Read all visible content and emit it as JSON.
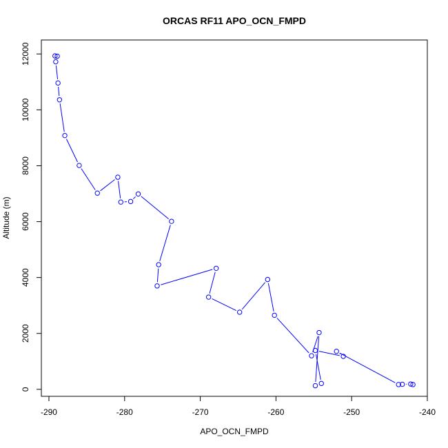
{
  "chart_data": {
    "type": "line",
    "title": "ORCAS RF11 APO_OCN_FMPD",
    "xlabel": "APO_OCN_FMPD",
    "ylabel": "Altitude (m)",
    "xlim": [
      -291,
      -240
    ],
    "ylim": [
      -250,
      12500
    ],
    "x_ticks": [
      -290,
      -280,
      -270,
      -260,
      -250,
      -240
    ],
    "y_ticks": [
      0,
      2000,
      4000,
      6000,
      8000,
      10000,
      12000
    ],
    "x_tick_labels": [
      "-290",
      "-280",
      "-270",
      "-260",
      "-250",
      "-240"
    ],
    "y_tick_labels": [
      "0",
      "2000",
      "4000",
      "6000",
      "8000",
      "10000",
      "12000"
    ],
    "marker": "open-circle",
    "line_style": "solid",
    "grid": false,
    "legend": "none",
    "color": "#0000ff",
    "series": [
      {
        "x": [
          -289.2,
          -288.9,
          -289.1,
          -288.8,
          -288.6,
          -287.9,
          -286.0,
          -283.6,
          -280.9,
          -280.5,
          -279.2,
          -278.2,
          -273.8,
          -275.5,
          -275.7,
          -267.9,
          -268.9,
          -264.8,
          -261.1,
          -260.2,
          -255.3,
          -254.3,
          -254.8,
          -254.0,
          -254.8,
          -251.1,
          -252.0,
          -243.8,
          -243.3,
          -242.2,
          -241.9
        ],
        "y": [
          11930,
          11920,
          11720,
          10960,
          10360,
          9080,
          8010,
          7020,
          7590,
          6700,
          6720,
          6990,
          6010,
          4460,
          3700,
          4330,
          3300,
          2760,
          3930,
          2650,
          1200,
          2030,
          130,
          210,
          1390,
          1180,
          1360,
          170,
          180,
          190,
          170
        ]
      }
    ]
  }
}
